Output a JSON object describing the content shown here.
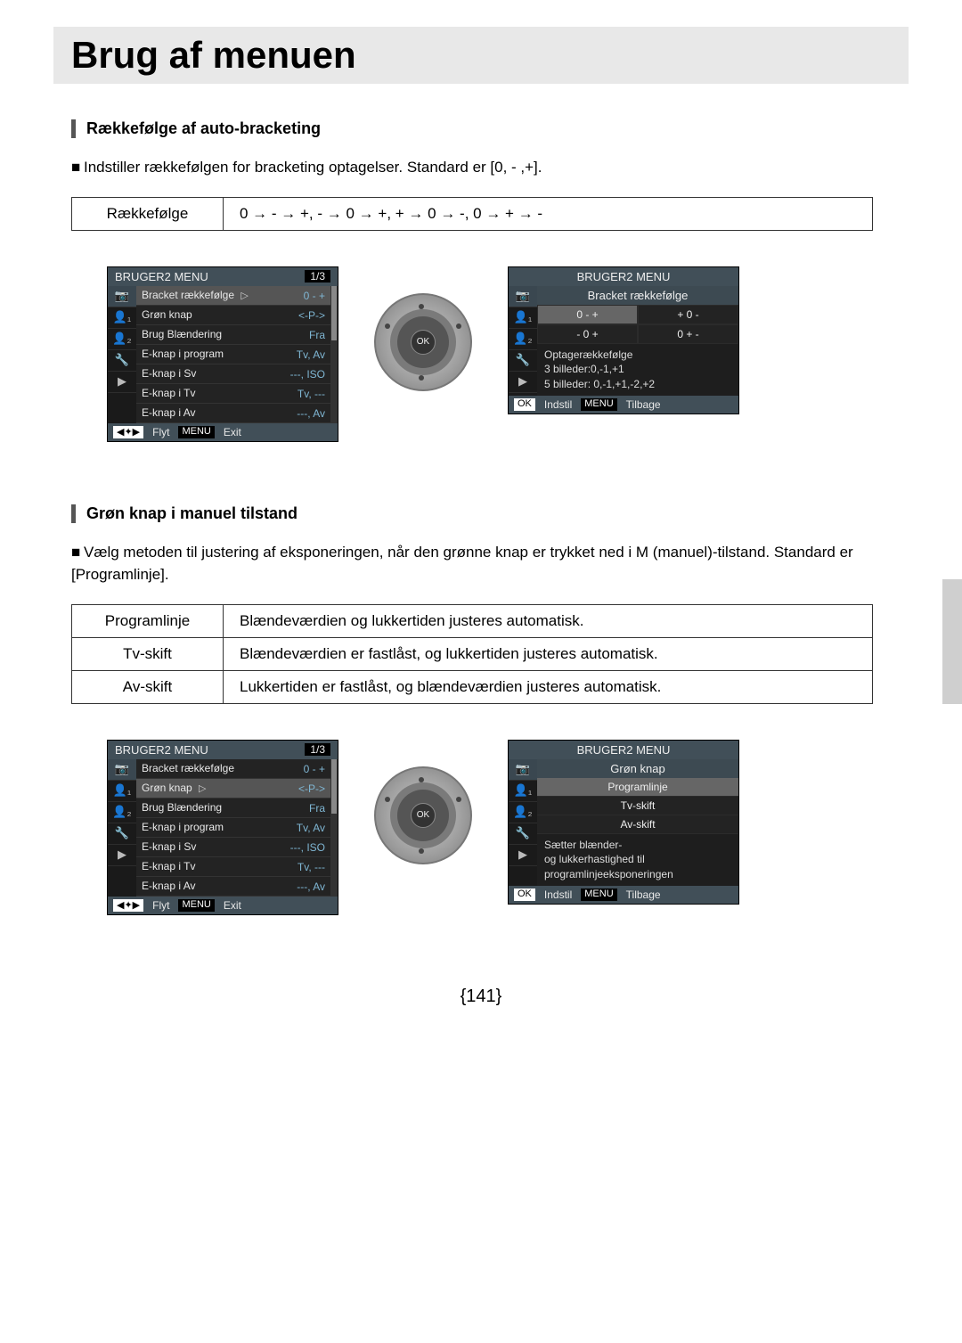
{
  "page": {
    "title": "Brug af menuen",
    "number": "{141}"
  },
  "section1": {
    "heading": "Rækkefølge af auto-bracketing",
    "body": "Indstiller rækkefølgen for bracketing optagelser. Standard er [0, - ,+].",
    "table": {
      "label": "Rækkefølge",
      "value": "0 → - → +, - → 0 → +, + → 0 → -, 0 → + → -"
    },
    "menu": {
      "title": "BRUGER2 MENU",
      "page": "1/3",
      "rows": [
        {
          "label": "Bracket rækkefølge",
          "value": "0 - +",
          "selected": true
        },
        {
          "label": "Grøn knap",
          "value": "<-P->"
        },
        {
          "label": "Brug Blændering",
          "value": "Fra"
        },
        {
          "label": "E-knap i program",
          "value": "Tv, Av"
        },
        {
          "label": "E-knap i Sv",
          "value": "---, ISO"
        },
        {
          "label": "E-knap i Tv",
          "value": "Tv, ---"
        },
        {
          "label": "E-knap i Av",
          "value": "---, Av"
        }
      ],
      "footer_left": "Flyt",
      "footer_right": "Exit"
    },
    "submenu": {
      "title": "BRUGER2 MENU",
      "sub_title": "Bracket rækkefølge",
      "options": [
        "0 - +",
        "+ 0 -",
        "- 0 +",
        "0 + -"
      ],
      "selected_index": 0,
      "desc": [
        "Optagerækkefølge",
        "3 billeder:0,-1,+1",
        "5 billeder: 0,-1,+1,-2,+2"
      ],
      "footer_left": "Indstil",
      "footer_right": "Tilbage"
    }
  },
  "section2": {
    "heading": "Grøn knap i manuel tilstand",
    "body": "Vælg metoden til justering af eksponeringen, når den grønne knap er trykket ned i M (manuel)-tilstand. Standard er [Programlinje].",
    "table": {
      "rows": [
        {
          "label": "Programlinje",
          "value": "Blændeværdien og lukkertiden justeres automatisk."
        },
        {
          "label": "Tv-skift",
          "value": "Blændeværdien er fastlåst, og lukkertiden justeres automatisk."
        },
        {
          "label": "Av-skift",
          "value": "Lukkertiden er fastlåst, og blændeværdien justeres automatisk."
        }
      ]
    },
    "menu": {
      "title": "BRUGER2 MENU",
      "page": "1/3",
      "rows": [
        {
          "label": "Bracket rækkefølge",
          "value": "0 - +"
        },
        {
          "label": "Grøn knap",
          "value": "<-P->",
          "selected": true
        },
        {
          "label": "Brug Blændering",
          "value": "Fra"
        },
        {
          "label": "E-knap i program",
          "value": "Tv, Av"
        },
        {
          "label": "E-knap i Sv",
          "value": "---, ISO"
        },
        {
          "label": "E-knap i Tv",
          "value": "Tv, ---"
        },
        {
          "label": "E-knap i Av",
          "value": "---, Av"
        }
      ],
      "footer_left": "Flyt",
      "footer_right": "Exit"
    },
    "submenu": {
      "title": "BRUGER2 MENU",
      "sub_title": "Grøn knap",
      "options": [
        "Programlinje",
        "Tv-skift",
        "Av-skift"
      ],
      "selected_index": 0,
      "desc": [
        "Sætter blænder-",
        "og lukkerhastighed til",
        "programlinjeeksponeringen"
      ],
      "footer_left": "Indstil",
      "footer_right": "Tilbage"
    }
  },
  "labels": {
    "ok": "OK",
    "menu": "MENU",
    "nav": "◀✦▶"
  },
  "icons": {
    "tabs": [
      "📷",
      "👤₁",
      "👤₂",
      "🔧",
      "▶"
    ]
  },
  "colors": {
    "header_bg": "#414f58",
    "panel_bg": "#232323",
    "value_color": "#7fb6d3",
    "selected_bg": "#555555"
  }
}
